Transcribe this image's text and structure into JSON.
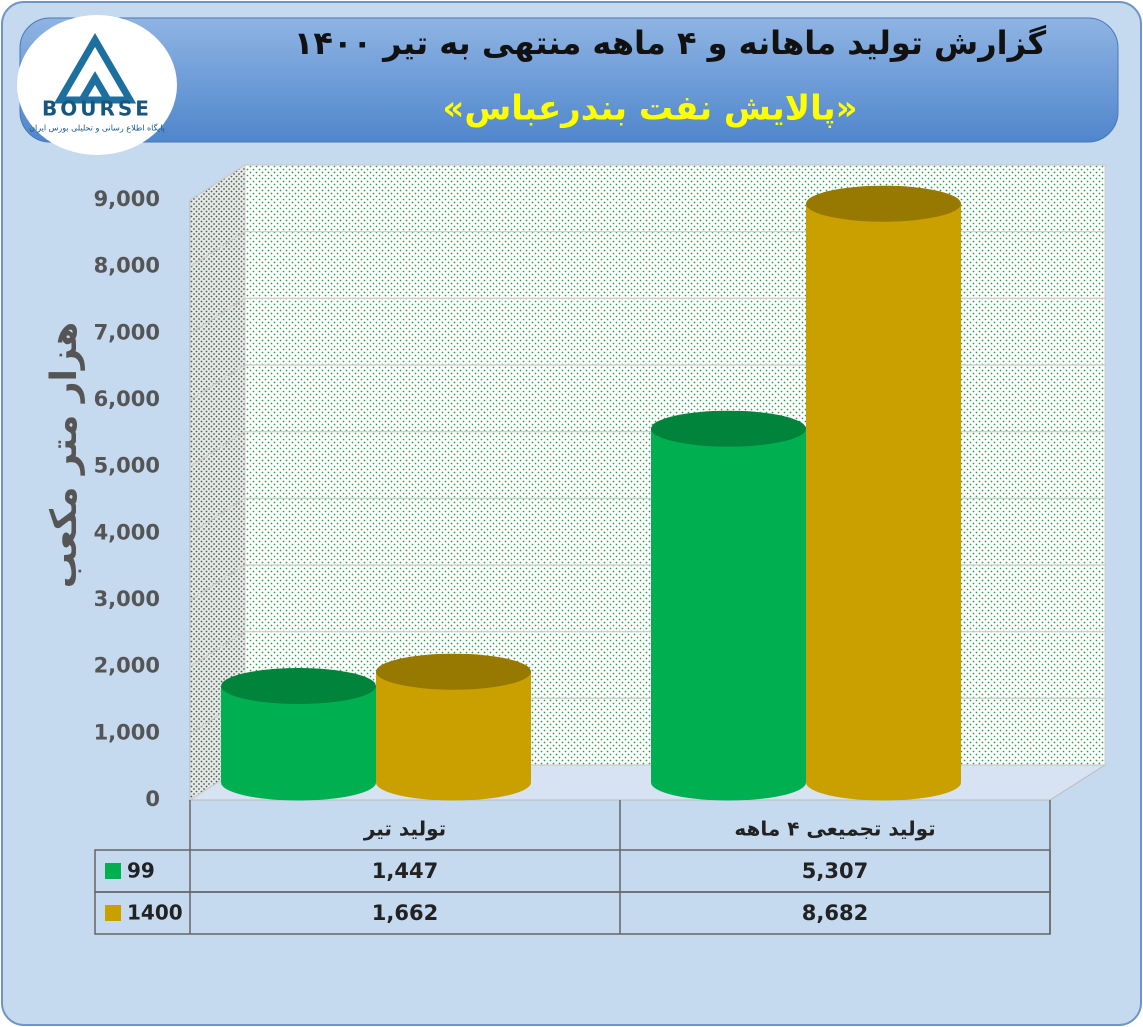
{
  "logo": {
    "name": "BOURSE",
    "tagline": "پایگاه اطلاع رسانی و تحلیلی بورس ایران"
  },
  "chart_data": {
    "type": "bar3d",
    "title": "گزارش تولید ماهانه و ۴ ماهه منتهی به تیر ۱۴۰۰",
    "subtitle": "«پالایش نفت بندرعباس»",
    "y_label": "هزار متر مکعب",
    "categories": [
      "تولید تیر",
      "تولید تجمیعی ۴ ماهه"
    ],
    "series": [
      {
        "name": "99",
        "color": "#00b050",
        "values": [
          1447,
          5307
        ],
        "value_labels": [
          "1,447",
          "5,307"
        ]
      },
      {
        "name": "1400",
        "color": "#c9a000",
        "values": [
          1662,
          8682
        ],
        "value_labels": [
          "1,662",
          "8,682"
        ]
      }
    ],
    "ylim": [
      0,
      9000
    ],
    "yticks": [
      0,
      {
        "value": 1000,
        "label": "1,000"
      },
      {
        "value": 2000,
        "label": "2,000"
      },
      {
        "value": 3000,
        "label": "3,000"
      },
      {
        "value": 4000,
        "label": "4,000"
      },
      {
        "value": 5000,
        "label": "5,000"
      },
      {
        "value": 6000,
        "label": "6,000"
      },
      {
        "value": 7000,
        "label": "7,000"
      },
      {
        "value": 8000,
        "label": "8,000"
      },
      {
        "value": 9000,
        "label": "9,000"
      }
    ],
    "grid": true,
    "data_table": true
  }
}
